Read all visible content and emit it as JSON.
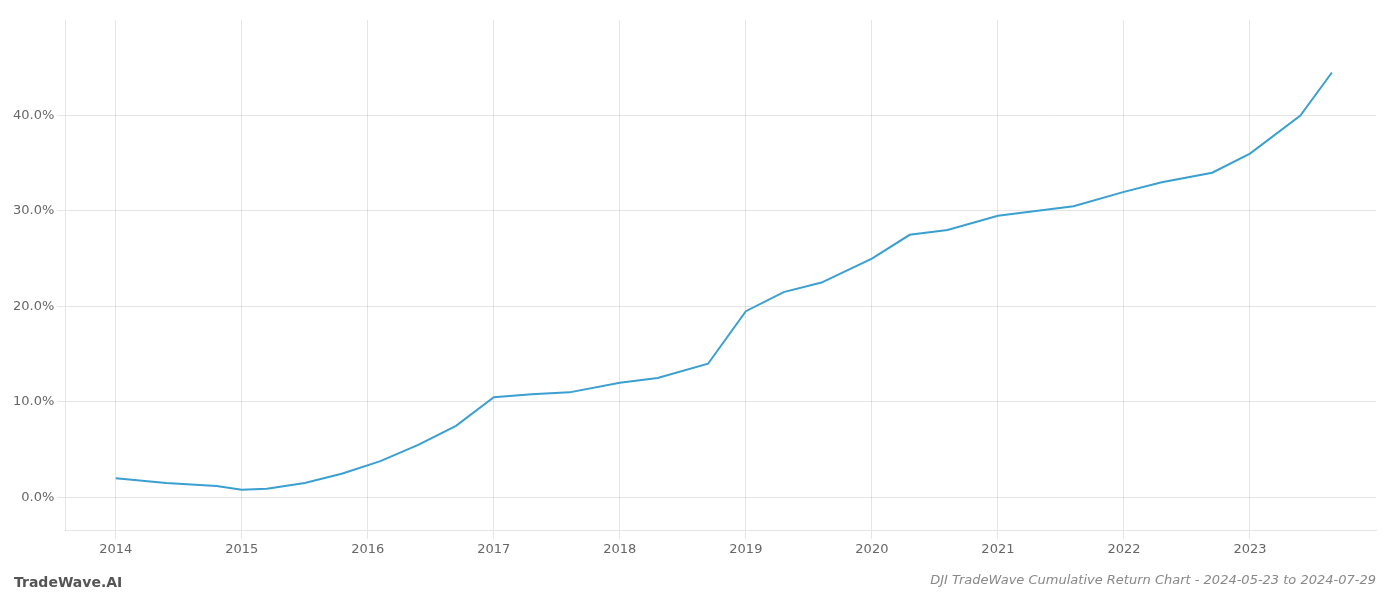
{
  "chart_data": {
    "type": "line",
    "title": "DJI TradeWave Cumulative Return Chart - 2024-05-23 to 2024-07-29",
    "annotations": [
      "TradeWave.AI"
    ],
    "x": [
      2014.0,
      2014.4,
      2014.8,
      2015.0,
      2015.2,
      2015.5,
      2015.8,
      2016.1,
      2016.4,
      2016.7,
      2017.0,
      2017.3,
      2017.6,
      2018.0,
      2018.3,
      2018.7,
      2019.0,
      2019.3,
      2019.6,
      2020.0,
      2020.3,
      2020.6,
      2021.0,
      2021.3,
      2021.6,
      2022.0,
      2022.3,
      2022.7,
      2023.0,
      2023.4,
      2023.65
    ],
    "values": [
      2.0,
      1.5,
      1.2,
      0.8,
      0.9,
      1.5,
      2.5,
      3.8,
      5.5,
      7.5,
      10.5,
      10.8,
      11.0,
      12.0,
      12.5,
      14.0,
      19.5,
      21.5,
      22.5,
      25.0,
      27.5,
      28.0,
      29.5,
      30.0,
      30.5,
      32.0,
      33.0,
      34.0,
      36.0,
      40.0,
      44.5
    ],
    "color": "#3a9fd1",
    "xlim": [
      2013.6,
      2024.0
    ],
    "ylim": [
      -3.5,
      50
    ],
    "xticks": [
      2014,
      2015,
      2016,
      2017,
      2018,
      2019,
      2020,
      2021,
      2022,
      2023
    ],
    "yticks": [
      {
        "value": 0,
        "label": "0.0%"
      },
      {
        "value": 10,
        "label": "10.0%"
      },
      {
        "value": 20,
        "label": "20.0%"
      },
      {
        "value": 30,
        "label": "30.0%"
      },
      {
        "value": 40,
        "label": "40.0%"
      }
    ],
    "grid": true
  }
}
